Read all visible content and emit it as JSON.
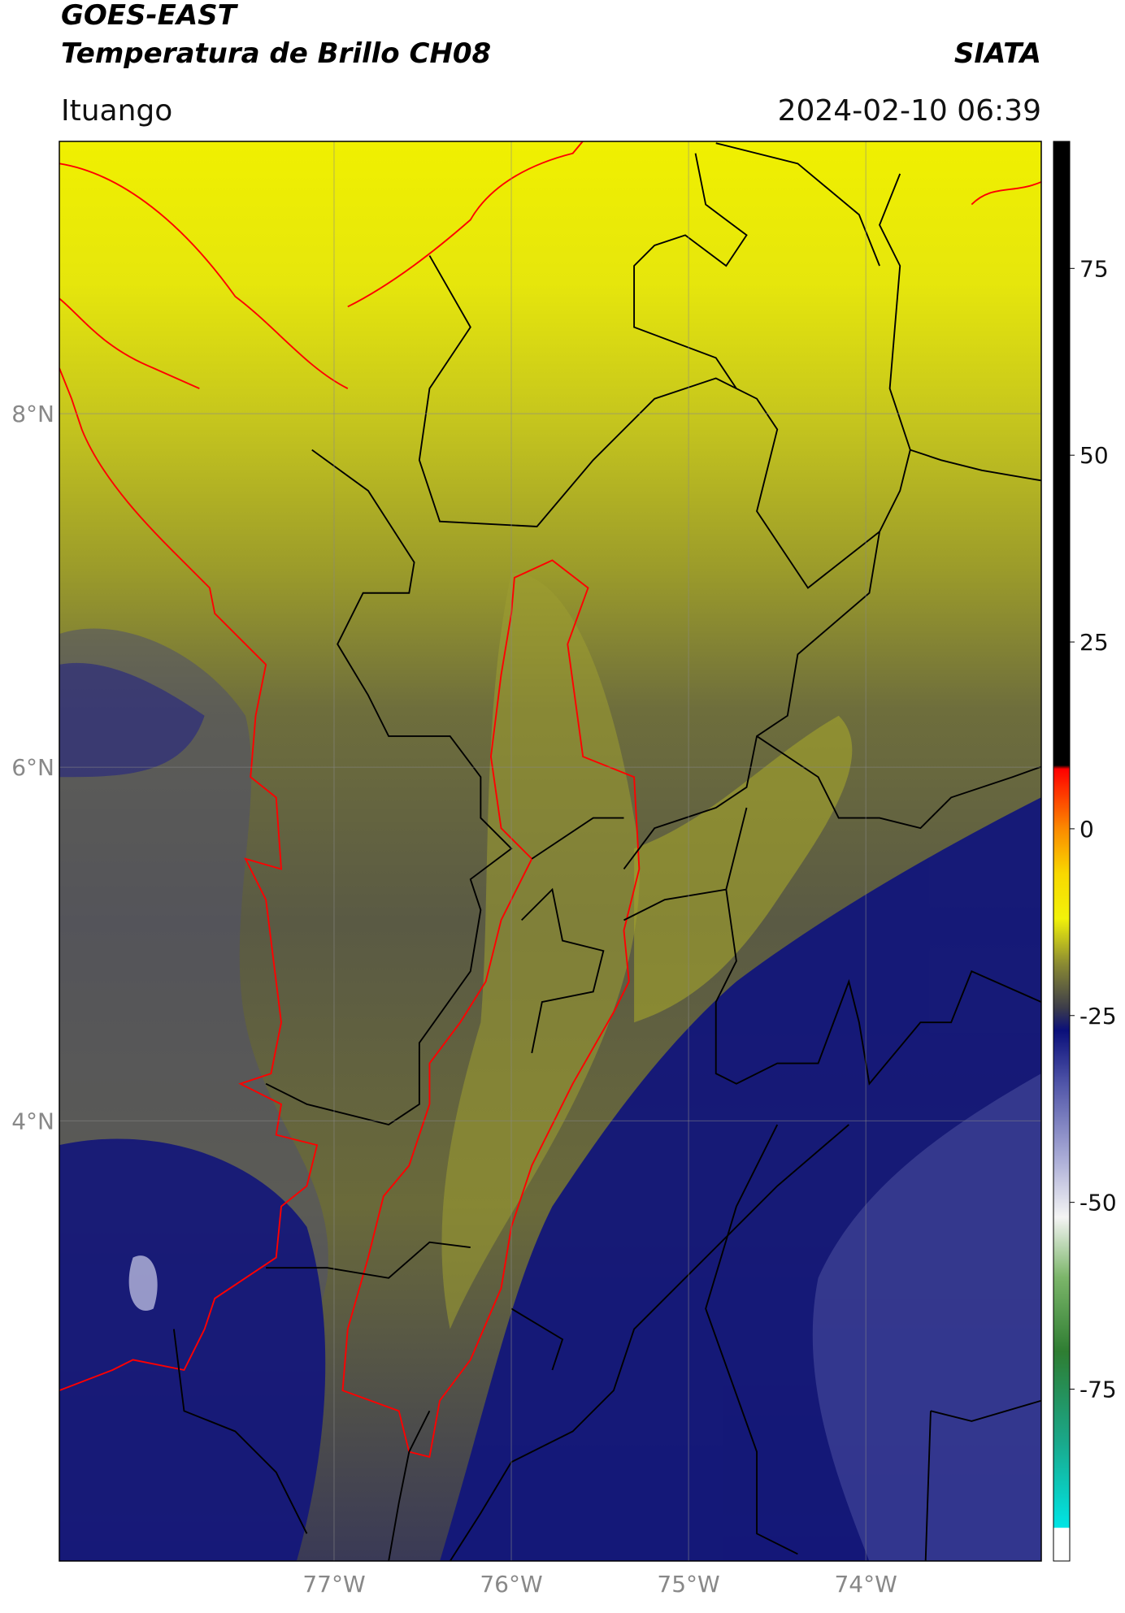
{
  "chart_data": {
    "type": "map",
    "title": "GOES-EAST",
    "subtitle": "Temperatura de Brillo CH08",
    "source": "SIATA",
    "location": "Ituango",
    "datetime": "2024-02-10 06:39",
    "xlim": [
      -78.55,
      -73.01
    ],
    "ylim": [
      1.51,
      9.54
    ],
    "xticks": [
      {
        "value": -77,
        "label": "77°W"
      },
      {
        "value": -76,
        "label": "76°W"
      },
      {
        "value": -75,
        "label": "75°W"
      },
      {
        "value": -74,
        "label": "74°W"
      }
    ],
    "yticks": [
      {
        "value": 8,
        "label": "8°N"
      },
      {
        "value": 6,
        "label": "6°N"
      },
      {
        "value": 4,
        "label": "4°N"
      }
    ],
    "grid": true,
    "colorbar": {
      "lim": [
        -98,
        92
      ],
      "ticks": [
        75,
        50,
        25,
        0,
        -25,
        -50,
        -75
      ],
      "colormap": [
        {
          "value": -98,
          "color": "#ffffff"
        },
        {
          "value": -93.6,
          "color": "#ffffff"
        },
        {
          "value": -93.5,
          "color": "#00e5e5"
        },
        {
          "value": -82,
          "color": "#1aa88a"
        },
        {
          "value": -70,
          "color": "#2e7d32"
        },
        {
          "value": -60,
          "color": "#7cb66a"
        },
        {
          "value": -52,
          "color": "#f4f4f4"
        },
        {
          "value": -44,
          "color": "#a9abd6"
        },
        {
          "value": -34,
          "color": "#4f54a8"
        },
        {
          "value": -27,
          "color": "#0a0f7a"
        },
        {
          "value": -24,
          "color": "#3c3c4a"
        },
        {
          "value": -18,
          "color": "#8c8c32"
        },
        {
          "value": -12,
          "color": "#f2f20a"
        },
        {
          "value": -6,
          "color": "#f8d800"
        },
        {
          "value": 0,
          "color": "#fb8a00"
        },
        {
          "value": 8,
          "color": "#ff0000"
        },
        {
          "value": 8.5,
          "color": "#000000"
        },
        {
          "value": 92,
          "color": "#000000"
        }
      ]
    }
  }
}
